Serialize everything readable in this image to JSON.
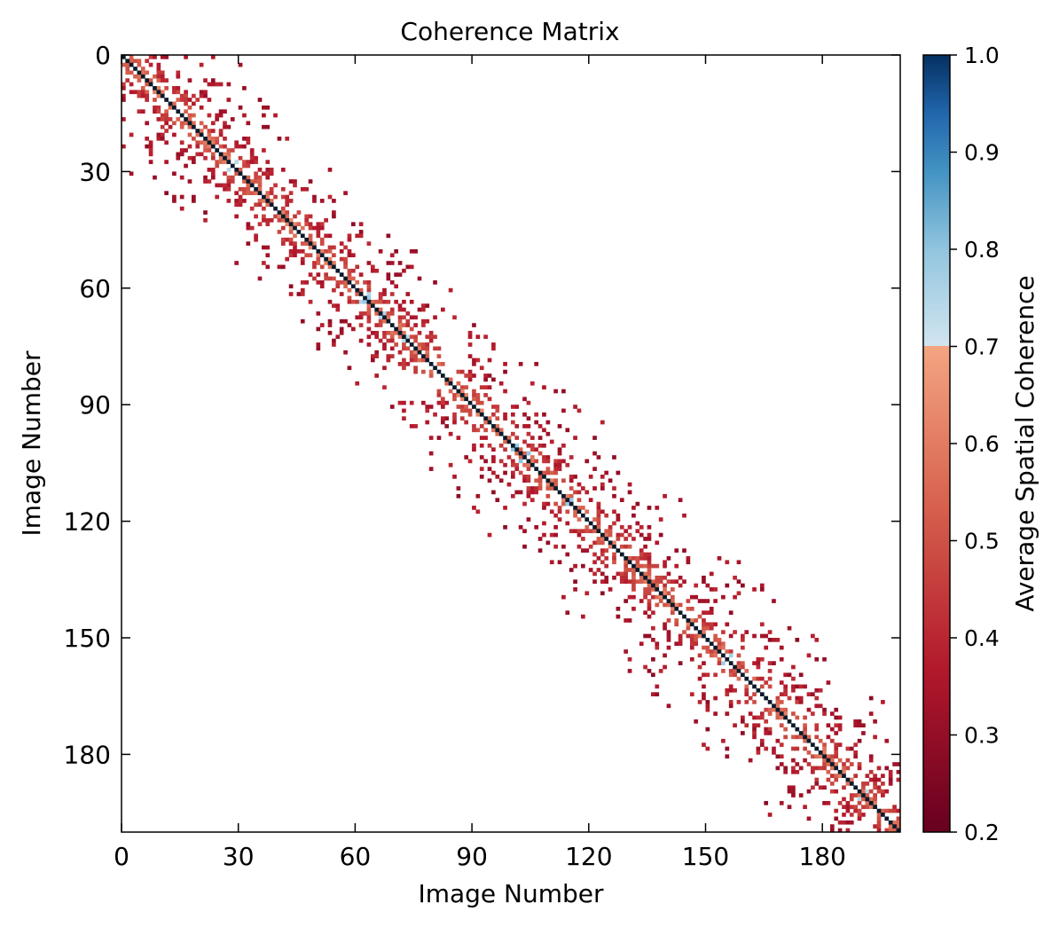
{
  "chart_data": {
    "type": "heatmap",
    "title": "Coherence Matrix",
    "xlabel": "Image Number",
    "ylabel": "Image Number",
    "n_images": 200,
    "xlim": [
      0,
      200
    ],
    "ylim": [
      200,
      0
    ],
    "x_ticks": [
      0,
      30,
      60,
      90,
      120,
      150,
      180
    ],
    "y_ticks": [
      0,
      30,
      60,
      90,
      120,
      150,
      180
    ],
    "diagonal_value": 1.0,
    "off_diagonal_band_halfwidth": 30,
    "colorbar": {
      "label": "Average Spatial Coherence",
      "range": [
        0.2,
        1.0
      ],
      "ticks": [
        0.2,
        0.3,
        0.4,
        0.5,
        0.6,
        0.7,
        0.8,
        0.9,
        1.0
      ],
      "threshold": 0.7,
      "low_colors": [
        "#67001f",
        "#b2182b",
        "#d6604d",
        "#f4a582"
      ],
      "high_colors": [
        "#d1e5f0",
        "#92c5de",
        "#4393c3",
        "#2166ac",
        "#053061"
      ]
    },
    "grid": false
  }
}
